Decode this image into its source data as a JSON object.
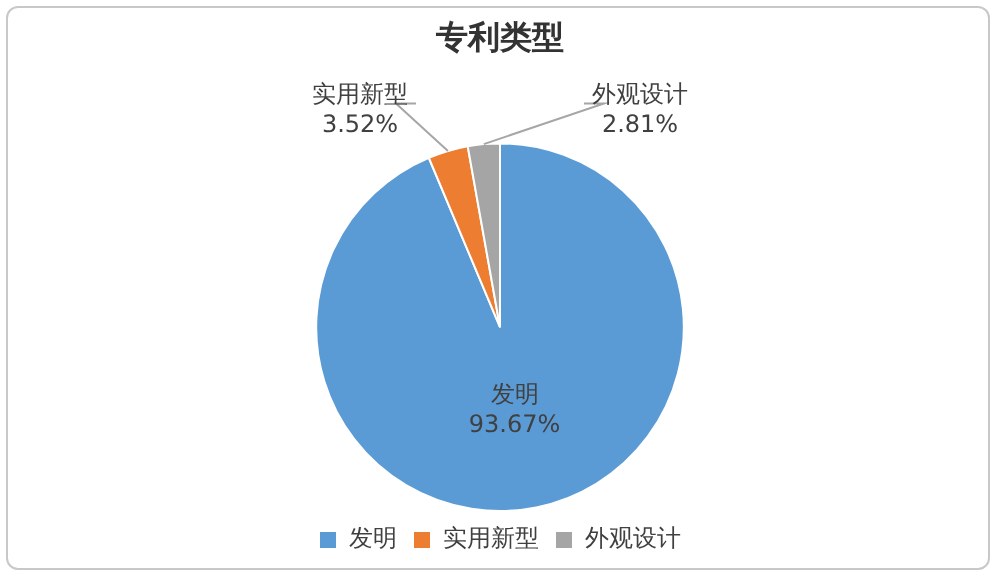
{
  "chart_data": {
    "type": "pie",
    "title": "专利类型",
    "categories": [
      "发明",
      "实用新型",
      "外观设计"
    ],
    "values": [
      93.67,
      3.52,
      2.81
    ],
    "colors": [
      "#5b9bd5",
      "#ed7d31",
      "#a5a5a5"
    ],
    "value_labels": [
      "93.67%",
      "3.52%",
      "2.81%"
    ],
    "legend": "bottom"
  }
}
